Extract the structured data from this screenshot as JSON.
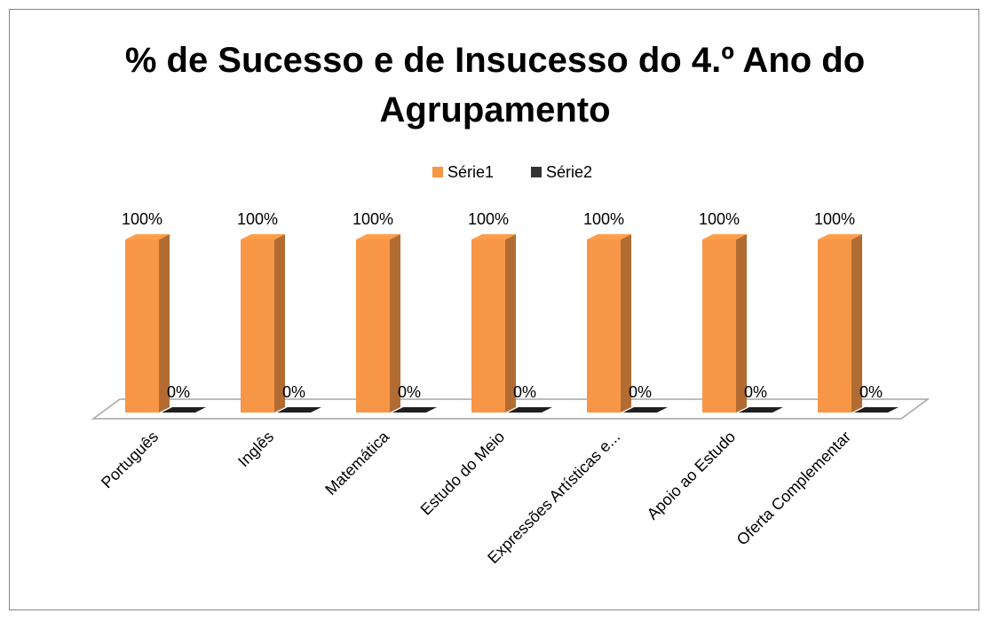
{
  "chart_data": {
    "type": "bar3d",
    "title": "% de Sucesso e de Insucesso do 4.º Ano do Agrupamento",
    "categories": [
      "Português",
      "Inglês",
      "Matemática",
      "Estudo do Meio",
      "Expressões Artísticas e...",
      "Apoio ao Estudo",
      "Oferta Complementar"
    ],
    "series": [
      {
        "name": "Série1",
        "color": "#f79646",
        "values": [
          100,
          100,
          100,
          100,
          100,
          100,
          100
        ],
        "value_labels": [
          "100%",
          "100%",
          "100%",
          "100%",
          "100%",
          "100%",
          "100%"
        ]
      },
      {
        "name": "Série2",
        "color": "#333333",
        "values": [
          0,
          0,
          0,
          0,
          0,
          0,
          0
        ],
        "value_labels": [
          "0%",
          "0%",
          "0%",
          "0%",
          "0%",
          "0%",
          "0%"
        ]
      }
    ],
    "legend": "top"
  }
}
